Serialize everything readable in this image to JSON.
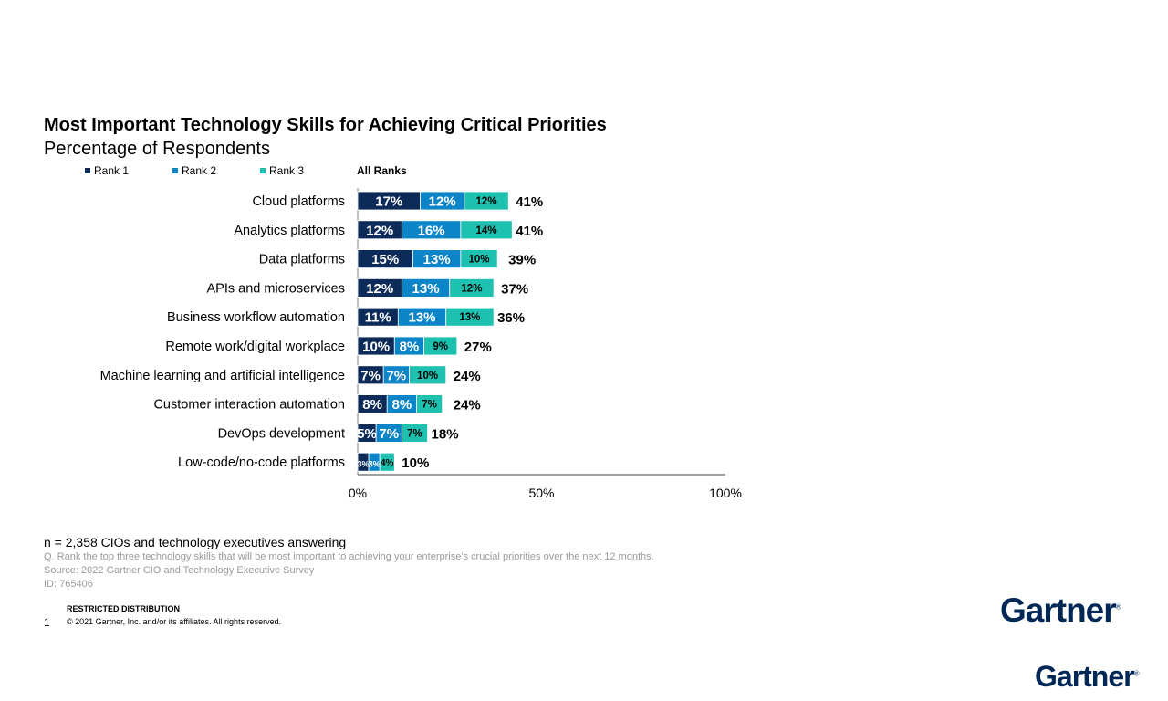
{
  "header": {
    "title": "Most Important Technology Skills for Achieving Critical Priorities",
    "subtitle": "Percentage of Respondents"
  },
  "legend": {
    "items": [
      "Rank 1",
      "Rank 2",
      "Rank 3"
    ],
    "total_label": "All Ranks"
  },
  "colors": {
    "rank1": "#0c2b59",
    "rank2": "#0b85c8",
    "rank3": "#1ec0b0"
  },
  "chart_data": {
    "type": "bar",
    "orientation": "horizontal",
    "stacked": true,
    "categories": [
      "Cloud platforms",
      "Analytics platforms",
      "Data platforms",
      "APIs and microservices",
      "Business workflow automation",
      "Remote work/digital workplace",
      "Machine learning and artificial intelligence",
      "Customer interaction automation",
      "DevOps development",
      "Low-code/no-code platforms"
    ],
    "series": [
      {
        "name": "Rank 1",
        "values": [
          17,
          12,
          15,
          12,
          11,
          10,
          7,
          8,
          5,
          3
        ]
      },
      {
        "name": "Rank 2",
        "values": [
          12,
          16,
          13,
          13,
          13,
          8,
          7,
          8,
          7,
          3
        ]
      },
      {
        "name": "Rank 3",
        "values": [
          12,
          14,
          10,
          12,
          13,
          9,
          10,
          7,
          7,
          4
        ]
      }
    ],
    "labels": [
      [
        "17%",
        "12%",
        "12%"
      ],
      [
        "12%",
        "16%",
        "14%"
      ],
      [
        "15%",
        "13%",
        "10%"
      ],
      [
        "12%",
        "13%",
        "12%"
      ],
      [
        "11%",
        "13%",
        "13%"
      ],
      [
        "10%",
        "8%",
        "9%"
      ],
      [
        "7%",
        "7%",
        "10%"
      ],
      [
        "8%",
        "8%",
        "7%"
      ],
      [
        "5%",
        "7%",
        "7%"
      ],
      [
        "3%",
        "3%",
        "4%"
      ]
    ],
    "totals": [
      "41%",
      "41%",
      "39%",
      "37%",
      "36%",
      "27%",
      "24%",
      "24%",
      "18%",
      "10%"
    ],
    "total_values": [
      41,
      41,
      39,
      37,
      36,
      27,
      24,
      24,
      18,
      10
    ],
    "xlim": [
      0,
      100
    ],
    "xticks": [
      "0%",
      "50%",
      "100%"
    ],
    "grid": false,
    "legend_position": "top-left"
  },
  "footer": {
    "n": "n = 2,358 CIOs and technology  executives answering",
    "question": "Q. Rank the top three technology skills that will be most important to achieving your enterprise’s crucial priorities over the next 12 months.",
    "source": "Source: 2022 Gartner CIO and Technology Executive Survey",
    "id": "ID: 765406",
    "restricted": "RESTRICTED DISTRIBUTION",
    "page": "1",
    "copyright": "© 2021  Gartner, Inc. and/or its affiliates. All rights reserved."
  },
  "logo": {
    "text": "Gartner",
    "mark": "®"
  }
}
